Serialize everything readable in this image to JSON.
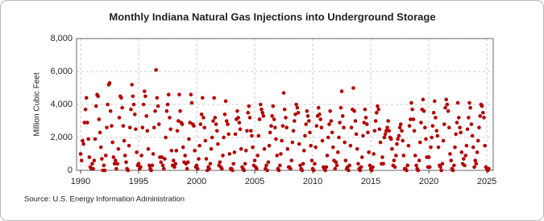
{
  "chart_data": {
    "type": "scatter",
    "title": "Monthly Indiana Natural Gas Injections into Underground Storage",
    "ylabel": "Million Cubic Feet",
    "source": "Source: U.S. Energy Information Administration",
    "color": "#b30000",
    "grid": true,
    "xlim": [
      1989.65,
      2025.55
    ],
    "ylim": [
      0,
      8000
    ],
    "xticks": [
      1990,
      1995,
      2000,
      2005,
      2010,
      2015,
      2020,
      2025
    ],
    "yticks": [
      0,
      {
        "value": 2000,
        "label": "2,000"
      },
      {
        "value": 4000,
        "label": "4,000"
      },
      {
        "value": 6000,
        "label": "6,000"
      },
      {
        "value": 8000,
        "label": "8,000"
      }
    ],
    "x": [
      1990,
      1990.08,
      1990.17,
      1990.25,
      1990.33,
      1990.42,
      1990.5,
      1990.58,
      1990.67,
      1990.75,
      1990.83,
      1990.92,
      1991,
      1991.08,
      1991.17,
      1991.25,
      1991.33,
      1991.42,
      1991.5,
      1991.58,
      1991.67,
      1991.75,
      1991.83,
      1991.92,
      1992,
      1992.08,
      1992.17,
      1992.25,
      1992.33,
      1992.42,
      1992.5,
      1992.58,
      1992.67,
      1992.75,
      1992.83,
      1992.92,
      1993,
      1993.08,
      1993.17,
      1993.25,
      1993.33,
      1993.42,
      1993.5,
      1993.58,
      1993.67,
      1993.75,
      1993.83,
      1993.92,
      1994,
      1994.08,
      1994.17,
      1994.25,
      1994.33,
      1994.42,
      1994.5,
      1994.58,
      1994.67,
      1994.75,
      1994.83,
      1994.92,
      1995,
      1995.08,
      1995.17,
      1995.25,
      1995.33,
      1995.42,
      1995.5,
      1995.58,
      1995.67,
      1995.75,
      1995.83,
      1995.92,
      1996,
      1996.08,
      1996.17,
      1996.25,
      1996.33,
      1996.42,
      1996.5,
      1996.58,
      1996.67,
      1996.75,
      1996.83,
      1996.92,
      1997,
      1997.08,
      1997.17,
      1997.25,
      1997.33,
      1997.42,
      1997.5,
      1997.58,
      1997.67,
      1997.75,
      1997.83,
      1997.92,
      1998,
      1998.08,
      1998.17,
      1998.25,
      1998.33,
      1998.42,
      1998.5,
      1998.58,
      1998.67,
      1998.75,
      1998.83,
      1998.92,
      1999,
      1999.08,
      1999.17,
      1999.25,
      1999.33,
      1999.42,
      1999.5,
      1999.58,
      1999.67,
      1999.75,
      1999.83,
      1999.92,
      2000,
      2000.08,
      2000.17,
      2000.25,
      2000.33,
      2000.42,
      2000.5,
      2000.58,
      2000.67,
      2000.75,
      2000.83,
      2000.92,
      2001,
      2001.08,
      2001.17,
      2001.25,
      2001.33,
      2001.42,
      2001.5,
      2001.58,
      2001.67,
      2001.75,
      2001.83,
      2001.92,
      2002,
      2002.08,
      2002.17,
      2002.25,
      2002.33,
      2002.42,
      2002.5,
      2002.58,
      2002.67,
      2002.75,
      2002.83,
      2002.92,
      2003,
      2003.08,
      2003.17,
      2003.25,
      2003.33,
      2003.42,
      2003.5,
      2003.58,
      2003.67,
      2003.75,
      2003.83,
      2003.92,
      2004,
      2004.08,
      2004.17,
      2004.25,
      2004.33,
      2004.42,
      2004.5,
      2004.58,
      2004.67,
      2004.75,
      2004.83,
      2004.92,
      2005,
      2005.08,
      2005.17,
      2005.25,
      2005.33,
      2005.42,
      2005.5,
      2005.58,
      2005.67,
      2005.75,
      2005.83,
      2005.92,
      2006,
      2006.08,
      2006.17,
      2006.25,
      2006.33,
      2006.42,
      2006.5,
      2006.58,
      2006.67,
      2006.75,
      2006.83,
      2006.92,
      2007,
      2007.08,
      2007.17,
      2007.25,
      2007.33,
      2007.42,
      2007.5,
      2007.58,
      2007.67,
      2007.75,
      2007.83,
      2007.92,
      2008,
      2008.08,
      2008.17,
      2008.25,
      2008.33,
      2008.42,
      2008.5,
      2008.58,
      2008.67,
      2008.75,
      2008.83,
      2008.92,
      2009,
      2009.08,
      2009.17,
      2009.25,
      2009.33,
      2009.42,
      2009.5,
      2009.58,
      2009.67,
      2009.75,
      2009.83,
      2009.92,
      2010,
      2010.08,
      2010.17,
      2010.25,
      2010.33,
      2010.42,
      2010.5,
      2010.58,
      2010.67,
      2010.75,
      2010.83,
      2010.92,
      2011,
      2011.08,
      2011.17,
      2011.25,
      2011.33,
      2011.42,
      2011.5,
      2011.58,
      2011.67,
      2011.75,
      2011.83,
      2011.92,
      2012,
      2012.08,
      2012.17,
      2012.25,
      2012.33,
      2012.42,
      2012.5,
      2012.58,
      2012.67,
      2012.75,
      2012.83,
      2012.92,
      2013,
      2013.08,
      2013.17,
      2013.25,
      2013.33,
      2013.42,
      2013.5,
      2013.58,
      2013.67,
      2013.75,
      2013.83,
      2013.92,
      2014,
      2014.08,
      2014.17,
      2014.25,
      2014.33,
      2014.42,
      2014.5,
      2014.58,
      2014.67,
      2014.75,
      2014.83,
      2014.92,
      2015,
      2015.08,
      2015.17,
      2015.25,
      2015.33,
      2015.42,
      2015.5,
      2015.58,
      2015.67,
      2015.75,
      2015.83,
      2015.92,
      2016,
      2016.08,
      2016.17,
      2016.25,
      2016.33,
      2016.42,
      2016.5,
      2016.58,
      2016.67,
      2016.75,
      2016.83,
      2016.92,
      2017,
      2017.08,
      2017.17,
      2017.25,
      2017.33,
      2017.42,
      2017.5,
      2017.58,
      2017.67,
      2017.75,
      2017.83,
      2017.92,
      2018,
      2018.08,
      2018.17,
      2018.25,
      2018.33,
      2018.42,
      2018.5,
      2018.58,
      2018.67,
      2018.75,
      2018.83,
      2018.92,
      2019,
      2019.08,
      2019.17,
      2019.25,
      2019.33,
      2019.42,
      2019.5,
      2019.58,
      2019.67,
      2019.75,
      2019.83,
      2019.92,
      2020,
      2020.08,
      2020.17,
      2020.25,
      2020.33,
      2020.42,
      2020.5,
      2020.58,
      2020.67,
      2020.75,
      2020.83,
      2020.92,
      2021,
      2021.08,
      2021.17,
      2021.25,
      2021.33,
      2021.42,
      2021.5,
      2021.58,
      2021.67,
      2021.75,
      2021.83,
      2021.92,
      2022,
      2022.08,
      2022.17,
      2022.25,
      2022.33,
      2022.42,
      2022.5,
      2022.58,
      2022.67,
      2022.75,
      2022.83,
      2022.92,
      2023,
      2023.08,
      2023.17,
      2023.25,
      2023.33,
      2023.42,
      2023.5,
      2023.58,
      2023.67,
      2023.75,
      2023.83,
      2023.92,
      2024,
      2024.08,
      2024.17,
      2024.25,
      2024.33,
      2024.42,
      2024.5,
      2024.58,
      2024.67,
      2024.75,
      2024.83,
      2024.92,
      2025,
      2025.08,
      2025.17
    ],
    "values": [
      1000,
      600,
      1800,
      1600,
      2900,
      3700,
      4400,
      2900,
      1900,
      800,
      200,
      100,
      400,
      100,
      600,
      1900,
      3900,
      4600,
      4500,
      3100,
      2300,
      1400,
      700,
      0,
      300,
      0,
      900,
      2600,
      4000,
      5200,
      5300,
      3600,
      2700,
      1700,
      800,
      400,
      600,
      100,
      400,
      1300,
      3200,
      4500,
      4400,
      3800,
      2700,
      1800,
      900,
      500,
      100,
      0,
      1500,
      2600,
      3700,
      5200,
      4500,
      4000,
      3400,
      2500,
      1100,
      300,
      400,
      100,
      200,
      900,
      2600,
      4000,
      4800,
      4500,
      3300,
      2400,
      1300,
      300,
      100,
      0,
      300,
      1000,
      2600,
      3600,
      6100,
      4400,
      3900,
      2800,
      800,
      500,
      800,
      300,
      100,
      700,
      2000,
      3600,
      4000,
      4600,
      3200,
      2500,
      1200,
      300,
      600,
      200,
      400,
      1200,
      2400,
      3000,
      4600,
      3600,
      2900,
      2800,
      1400,
      500,
      900,
      400,
      100,
      500,
      1900,
      2900,
      4600,
      4100,
      2800,
      2700,
      1200,
      200,
      300,
      100,
      700,
      1500,
      2800,
      3400,
      4400,
      3200,
      2600,
      1800,
      700,
      0,
      200,
      100,
      400,
      1300,
      2000,
      3000,
      4400,
      3200,
      2800,
      2400,
      1600,
      300,
      500,
      200,
      100,
      900,
      2000,
      3400,
      4200,
      3000,
      2800,
      2200,
      1000,
      100,
      100,
      0,
      400,
      1100,
      2200,
      3100,
      3600,
      3200,
      2900,
      2500,
      1300,
      200,
      100,
      0,
      400,
      1200,
      2400,
      3500,
      3900,
      3200,
      2400,
      2100,
      1400,
      300,
      600,
      200,
      100,
      900,
      2100,
      3100,
      4000,
      3700,
      3500,
      3300,
      1300,
      100,
      300,
      0,
      500,
      1500,
      2300,
      2700,
      3300,
      3900,
      3100,
      2600,
      1900,
      900,
      100,
      0,
      300,
      1000,
      1800,
      2700,
      4700,
      3700,
      3200,
      2600,
      1300,
      200,
      200,
      100,
      600,
      1700,
      2400,
      3000,
      3400,
      4000,
      3800,
      3500,
      1600,
      300,
      100,
      0,
      400,
      1200,
      2100,
      2800,
      3600,
      3300,
      3000,
      2300,
      1500,
      600,
      100,
      0,
      400,
      1400,
      2700,
      3300,
      3800,
      3400,
      3100,
      2600,
      1800,
      200,
      100,
      0,
      200,
      900,
      2000,
      2800,
      3600,
      3000,
      2300,
      1400,
      600,
      100,
      500,
      300,
      1100,
      2000,
      2900,
      3800,
      4800,
      3300,
      2600,
      1700,
      600,
      100,
      200,
      0,
      300,
      1500,
      2600,
      3700,
      5000,
      3600,
      3000,
      2200,
      1300,
      400,
      100,
      0,
      200,
      800,
      2100,
      2900,
      3700,
      3200,
      2800,
      2300,
      1100,
      300,
      100,
      0,
      200,
      1000,
      2400,
      3000,
      3500,
      3900,
      3700,
      2500,
      1700,
      400,
      800,
      400,
      2000,
      2200,
      2400,
      2600,
      3000,
      2400,
      2000,
      1900,
      1300,
      300,
      600,
      200,
      900,
      1600,
      1900,
      2100,
      2600,
      2800,
      2400,
      1800,
      900,
      100,
      100,
      0,
      300,
      1500,
      2700,
      3100,
      4100,
      3700,
      3100,
      2400,
      900,
      300,
      100,
      0,
      600,
      1700,
      2900,
      3700,
      4300,
      3600,
      2600,
      1900,
      800,
      200,
      800,
      200,
      1400,
      2000,
      2700,
      3500,
      4200,
      3200,
      2400,
      2100,
      1400,
      300,
      200,
      0,
      400,
      1800,
      2800,
      3800,
      4300,
      4000,
      3600,
      2600,
      1000,
      600,
      100,
      0,
      300,
      1400,
      2200,
      2900,
      4100,
      3200,
      2600,
      2300,
      1100,
      400,
      700,
      300,
      900,
      1500,
      2500,
      3200,
      4100,
      3800,
      2800,
      2100,
      1400,
      200,
      600,
      400,
      1100,
      1800,
      2600,
      3300,
      4000,
      3900,
      3500,
      3200,
      1500,
      200,
      100,
      0,
      100
    ]
  }
}
